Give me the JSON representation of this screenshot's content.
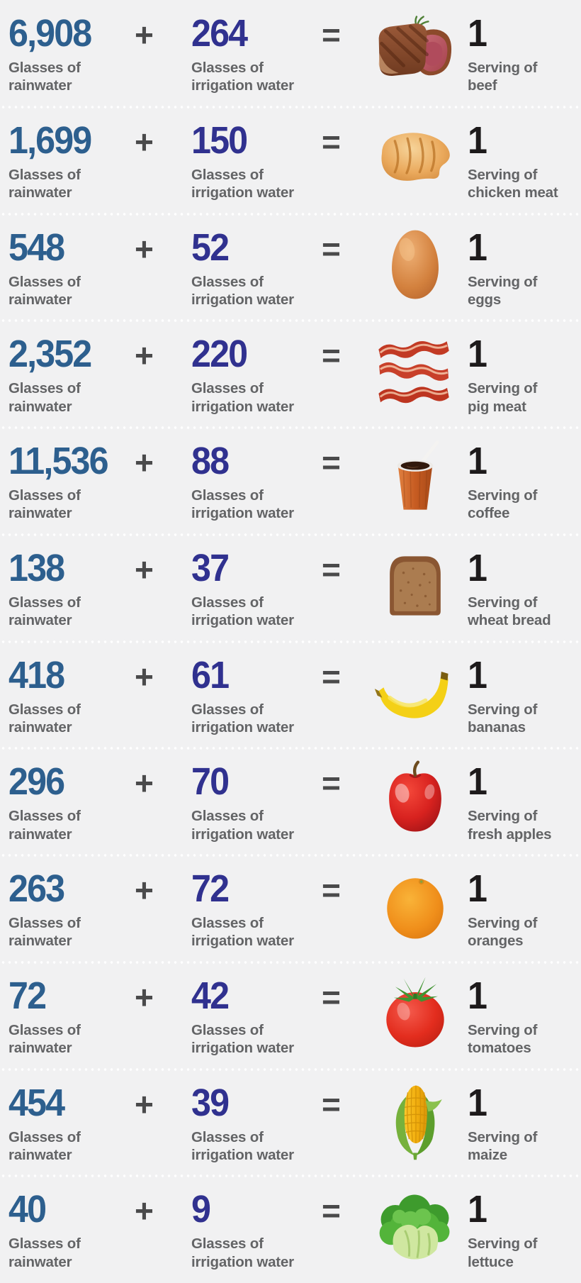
{
  "theme": {
    "background_color": "#f1f1f2",
    "rainwater_number_color": "#2d5f8e",
    "irrigation_number_color": "#30318f",
    "operator_color": "#4a4a4b",
    "label_color": "#636466",
    "result_number_color": "#1d1a1b",
    "divider_dot_color": "#ffffff"
  },
  "labels": {
    "plus": "+",
    "equals": "=",
    "rainwater_line1": "Glasses of",
    "rainwater_line2": "rainwater",
    "irrigation_line1": "Glasses of",
    "irrigation_line2": "irrigation water",
    "serving_line1": "Serving of",
    "result_value": "1"
  },
  "rows": [
    {
      "rainwater_glasses": "6,908",
      "irrigation_glasses": "264",
      "serving": "beef",
      "food": "beef",
      "icon": "beef-image"
    },
    {
      "rainwater_glasses": "1,699",
      "irrigation_glasses": "150",
      "serving": "chicken meat",
      "food": "chicken",
      "icon": "chicken-image"
    },
    {
      "rainwater_glasses": "548",
      "irrigation_glasses": "52",
      "serving": "eggs",
      "food": "egg",
      "icon": "egg-image"
    },
    {
      "rainwater_glasses": "2,352",
      "irrigation_glasses": "220",
      "serving": "pig meat",
      "food": "bacon",
      "icon": "bacon-image"
    },
    {
      "rainwater_glasses": "11,536",
      "irrigation_glasses": "88",
      "serving": "coffee",
      "food": "coffee",
      "icon": "coffee-image"
    },
    {
      "rainwater_glasses": "138",
      "irrigation_glasses": "37",
      "serving": "wheat bread",
      "food": "bread",
      "icon": "bread-image"
    },
    {
      "rainwater_glasses": "418",
      "irrigation_glasses": "61",
      "serving": "bananas",
      "food": "banana",
      "icon": "banana-image"
    },
    {
      "rainwater_glasses": "296",
      "irrigation_glasses": "70",
      "serving": "fresh apples",
      "food": "apple",
      "icon": "apple-image"
    },
    {
      "rainwater_glasses": "263",
      "irrigation_glasses": "72",
      "serving": "oranges",
      "food": "orange",
      "icon": "orange-image"
    },
    {
      "rainwater_glasses": "72",
      "irrigation_glasses": "42",
      "serving": "tomatoes",
      "food": "tomato",
      "icon": "tomato-image"
    },
    {
      "rainwater_glasses": "454",
      "irrigation_glasses": "39",
      "serving": "maize",
      "food": "maize",
      "icon": "maize-image"
    },
    {
      "rainwater_glasses": "40",
      "irrigation_glasses": "9",
      "serving": "lettuce",
      "food": "lettuce",
      "icon": "lettuce-image"
    }
  ],
  "chart_data": {
    "type": "table",
    "title": "",
    "columns": [
      "Glasses of rainwater",
      "Glasses of irrigation water",
      "Servings"
    ],
    "rows": [
      {
        "food": "beef",
        "rainwater_glasses": 6908,
        "irrigation_glasses": 264,
        "servings": 1
      },
      {
        "food": "chicken meat",
        "rainwater_glasses": 1699,
        "irrigation_glasses": 150,
        "servings": 1
      },
      {
        "food": "eggs",
        "rainwater_glasses": 548,
        "irrigation_glasses": 52,
        "servings": 1
      },
      {
        "food": "pig meat",
        "rainwater_glasses": 2352,
        "irrigation_glasses": 220,
        "servings": 1
      },
      {
        "food": "coffee",
        "rainwater_glasses": 11536,
        "irrigation_glasses": 88,
        "servings": 1
      },
      {
        "food": "wheat bread",
        "rainwater_glasses": 138,
        "irrigation_glasses": 37,
        "servings": 1
      },
      {
        "food": "bananas",
        "rainwater_glasses": 418,
        "irrigation_glasses": 61,
        "servings": 1
      },
      {
        "food": "fresh apples",
        "rainwater_glasses": 296,
        "irrigation_glasses": 70,
        "servings": 1
      },
      {
        "food": "oranges",
        "rainwater_glasses": 263,
        "irrigation_glasses": 72,
        "servings": 1
      },
      {
        "food": "tomatoes",
        "rainwater_glasses": 72,
        "irrigation_glasses": 42,
        "servings": 1
      },
      {
        "food": "maize",
        "rainwater_glasses": 454,
        "irrigation_glasses": 39,
        "servings": 1
      },
      {
        "food": "lettuce",
        "rainwater_glasses": 40,
        "irrigation_glasses": 9,
        "servings": 1
      }
    ]
  }
}
